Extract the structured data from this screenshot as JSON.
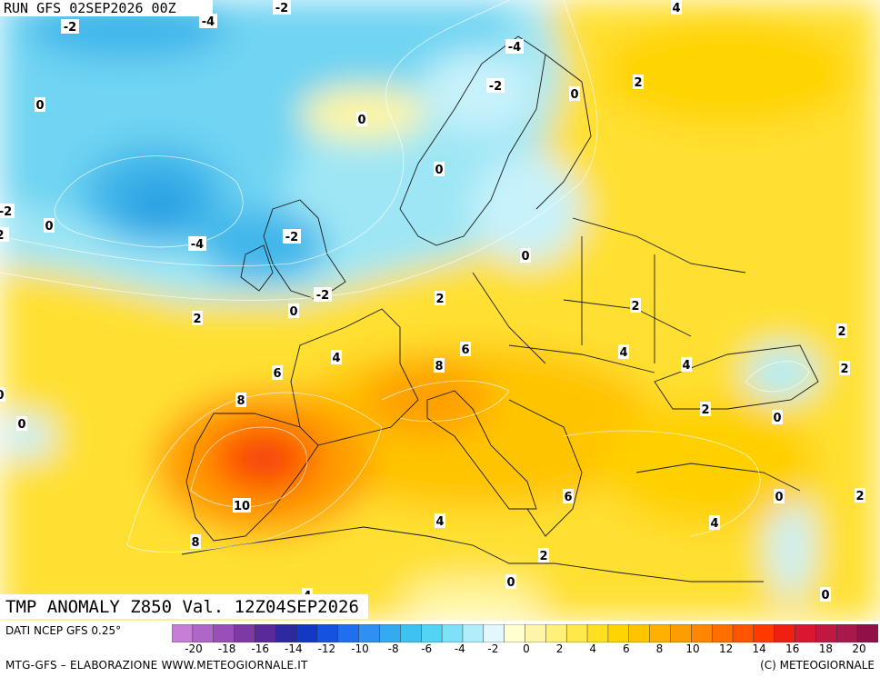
{
  "header": {
    "run_title": "RUN GFS 02SEP2026 00Z",
    "product_title": "TMP ANOMALY Z850 Val. 12Z04SEP2026"
  },
  "footer": {
    "data_source": "DATI NCEP GFS 0.25°",
    "credit_left": "MTG-GFS – ELABORAZIONE WWW.METEOGIORNALE.IT",
    "credit_right": "(C) METEOGIORNALE"
  },
  "colorbar": {
    "colors": [
      "#c77fd6",
      "#b066c8",
      "#9a4fb8",
      "#7e3aa4",
      "#5a2a9a",
      "#2c2a9e",
      "#1238c4",
      "#1552e0",
      "#1f6ff0",
      "#2f8ff2",
      "#35aaf0",
      "#3ec2f2",
      "#52d4f4",
      "#7ee2f7",
      "#b0eefa",
      "#e2f8fc",
      "#ffffd0",
      "#fff5a8",
      "#fff07a",
      "#ffe84a",
      "#ffe020",
      "#ffd400",
      "#ffc400",
      "#ffb000",
      "#ff9c00",
      "#ff8600",
      "#ff6e00",
      "#ff5400",
      "#ff3a00",
      "#f02010",
      "#d81830",
      "#c01840",
      "#a8184a",
      "#901048"
    ],
    "tick_labels": [
      "-20",
      "-18",
      "-16",
      "-14",
      "-12",
      "-10",
      "-8",
      "-6",
      "-4",
      "-2",
      "0",
      "2",
      "4",
      "6",
      "8",
      "10",
      "12",
      "14",
      "16",
      "18",
      "20"
    ]
  },
  "contour_labels": [
    "-2",
    "-4",
    "-2",
    "-4",
    "-2",
    "0",
    "0",
    "0",
    "-2",
    "0",
    "-4",
    "-2",
    "0",
    "-2",
    "-2",
    "0",
    "4",
    "2",
    "0",
    "2",
    "2",
    "2",
    "2",
    "4",
    "6",
    "4",
    "8",
    "6",
    "4",
    "8",
    "2",
    "0",
    "0",
    "0",
    "2",
    "10",
    "6",
    "4",
    "8",
    "0",
    "2",
    "4",
    "0",
    "0",
    "2",
    "2",
    "4"
  ]
}
